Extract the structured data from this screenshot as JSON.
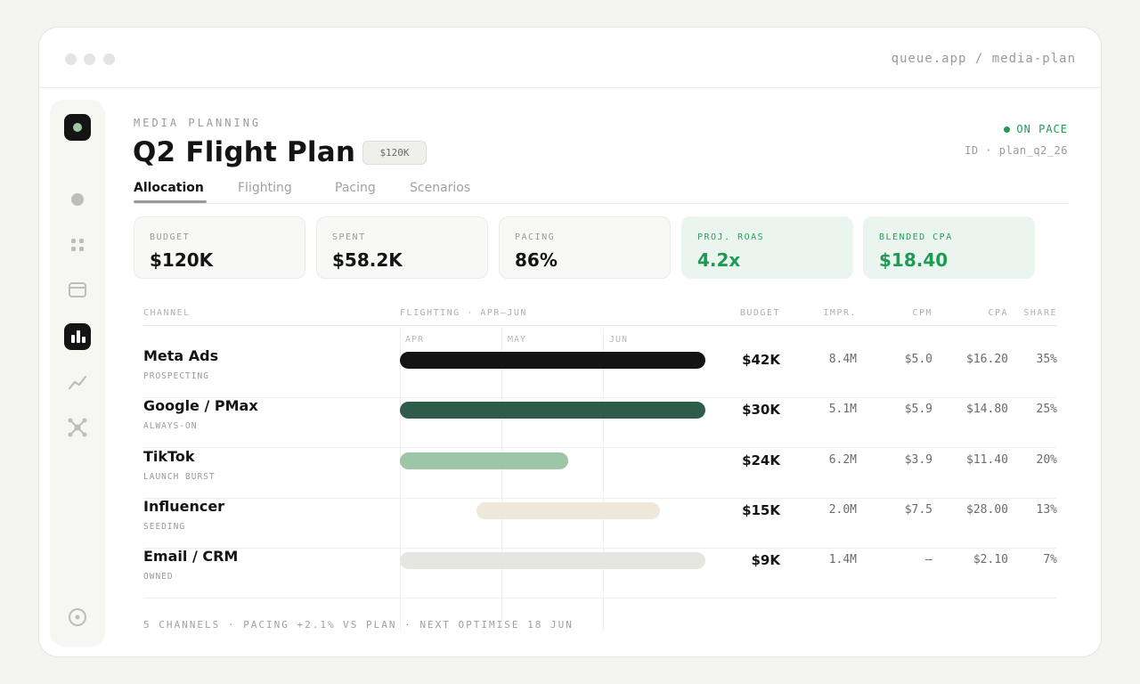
{
  "window": {
    "url": "queue.app / media-plan"
  },
  "sidebar": {
    "items": [
      {
        "icon": "app-logo-icon"
      },
      {
        "icon": "circle-icon"
      },
      {
        "icon": "grid-icon"
      },
      {
        "icon": "card-icon"
      },
      {
        "icon": "bar-chart-icon",
        "active": true
      },
      {
        "icon": "line-chart-icon"
      },
      {
        "icon": "network-icon"
      },
      {
        "icon": "target-icon"
      }
    ]
  },
  "header": {
    "eyebrow": "MEDIA PLANNING",
    "title": "Q2 Flight Plan",
    "budget_badge": "$120K",
    "status": "ON PACE",
    "plan_id": "ID · plan_q2_26"
  },
  "tabs": [
    {
      "label": "Allocation",
      "active": true
    },
    {
      "label": "Flighting"
    },
    {
      "label": "Pacing"
    },
    {
      "label": "Scenarios"
    }
  ],
  "kpis": [
    {
      "label": "BUDGET",
      "value": "$120K"
    },
    {
      "label": "SPENT",
      "value": "$58.2K"
    },
    {
      "label": "PACING",
      "value": "86%"
    },
    {
      "label": "PROJ. ROAS",
      "value": "4.2x",
      "highlight": true
    },
    {
      "label": "BLENDED CPA",
      "value": "$18.40",
      "highlight": true
    }
  ],
  "table": {
    "columns": {
      "channel": "CHANNEL",
      "flighting": "FLIGHTING · APR–JUN",
      "budget": "BUDGET",
      "impr": "IMPR.",
      "cpm": "CPM",
      "cpa": "CPA",
      "share": "SHARE"
    },
    "months": [
      "APR",
      "MAY",
      "JUN"
    ],
    "rows": [
      {
        "name": "Meta Ads",
        "sub": "PROSPECTING",
        "budget": "$42K",
        "impr": "8.4M",
        "cpm": "$5.0",
        "cpa": "$16.20",
        "share": "35%",
        "flight_start": 0.0,
        "flight_end": 1.0,
        "color": "#141414"
      },
      {
        "name": "Google / PMax",
        "sub": "ALWAYS-ON",
        "budget": "$30K",
        "impr": "5.1M",
        "cpm": "$5.9",
        "cpa": "$14.80",
        "share": "25%",
        "flight_start": 0.0,
        "flight_end": 1.0,
        "color": "#2f5c4a"
      },
      {
        "name": "TikTok",
        "sub": "LAUNCH BURST",
        "budget": "$24K",
        "impr": "6.2M",
        "cpm": "$3.9",
        "cpa": "$11.40",
        "share": "20%",
        "flight_start": 0.0,
        "flight_end": 0.55,
        "color": "#9cc6a6"
      },
      {
        "name": "Influencer",
        "sub": "SEEDING",
        "budget": "$15K",
        "impr": "2.0M",
        "cpm": "$7.5",
        "cpa": "$28.00",
        "share": "13%",
        "flight_start": 0.25,
        "flight_end": 0.85,
        "color": "#efe7da"
      },
      {
        "name": "Email / CRM",
        "sub": "OWNED",
        "budget": "$9K",
        "impr": "1.4M",
        "cpm": "—",
        "cpa": "$2.10",
        "share": "7%",
        "flight_start": 0.0,
        "flight_end": 1.0,
        "color": "#e6e6e1"
      }
    ]
  },
  "footer": "5 CHANNELS · PACING +2.1% VS PLAN · NEXT OPTIMISE 18 JUN"
}
